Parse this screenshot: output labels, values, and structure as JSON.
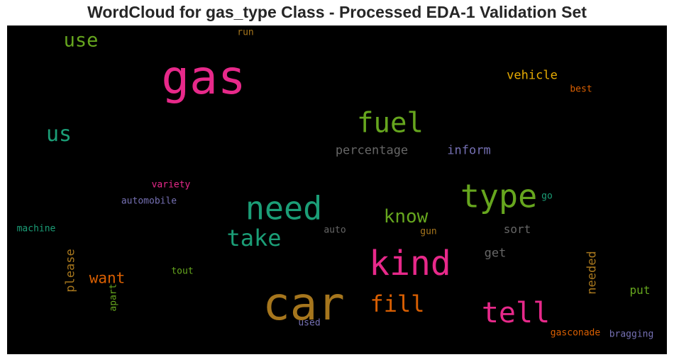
{
  "chart_data": {
    "type": "wordcloud",
    "title": "WordCloud for gas_type Class - Processed EDA-1 Validation Set",
    "background": "#000000",
    "words": [
      {
        "text": "gas",
        "color": "#e7298a",
        "weight": 1.0
      },
      {
        "text": "car",
        "color": "#a6761d",
        "weight": 0.95
      },
      {
        "text": "kind",
        "color": "#e7298a",
        "weight": 0.72
      },
      {
        "text": "type",
        "color": "#66a61e",
        "weight": 0.68
      },
      {
        "text": "need",
        "color": "#1b9e77",
        "weight": 0.68
      },
      {
        "text": "tell",
        "color": "#e7298a",
        "weight": 0.62
      },
      {
        "text": "fuel",
        "color": "#66a61e",
        "weight": 0.6
      },
      {
        "text": "take",
        "color": "#1b9e77",
        "weight": 0.5
      },
      {
        "text": "fill",
        "color": "#d95f02",
        "weight": 0.5
      },
      {
        "text": "us",
        "color": "#1b9e77",
        "weight": 0.48
      },
      {
        "text": "know",
        "color": "#66a61e",
        "weight": 0.42
      },
      {
        "text": "use",
        "color": "#66a61e",
        "weight": 0.42
      },
      {
        "text": "want",
        "color": "#d95f02",
        "weight": 0.34
      },
      {
        "text": "vehicle",
        "color": "#e6ab02",
        "weight": 0.28
      },
      {
        "text": "percentage",
        "color": "#666666",
        "weight": 0.27
      },
      {
        "text": "inform",
        "color": "#7570b3",
        "weight": 0.27
      },
      {
        "text": "please",
        "color": "#a6761d",
        "weight": 0.27
      },
      {
        "text": "needed",
        "color": "#a6761d",
        "weight": 0.27
      },
      {
        "text": "get",
        "color": "#666666",
        "weight": 0.27
      },
      {
        "text": "sort",
        "color": "#666666",
        "weight": 0.26
      },
      {
        "text": "put",
        "color": "#66a61e",
        "weight": 0.26
      },
      {
        "text": "best",
        "color": "#d95f02",
        "weight": 0.2
      },
      {
        "text": "variety",
        "color": "#e7298a",
        "weight": 0.2
      },
      {
        "text": "automobile",
        "color": "#7570b3",
        "weight": 0.2
      },
      {
        "text": "machine",
        "color": "#1b9e77",
        "weight": 0.2
      },
      {
        "text": "go",
        "color": "#1b9e77",
        "weight": 0.2
      },
      {
        "text": "auto",
        "color": "#666666",
        "weight": 0.2
      },
      {
        "text": "gun",
        "color": "#a6761d",
        "weight": 0.2
      },
      {
        "text": "tout",
        "color": "#66a61e",
        "weight": 0.2
      },
      {
        "text": "apart",
        "color": "#66a61e",
        "weight": 0.2
      },
      {
        "text": "used",
        "color": "#7570b3",
        "weight": 0.2
      },
      {
        "text": "gasconade",
        "color": "#d95f02",
        "weight": 0.2
      },
      {
        "text": "bragging",
        "color": "#7570b3",
        "weight": 0.2
      },
      {
        "text": "run",
        "color": "#a6761d",
        "weight": 0.2
      }
    ]
  }
}
